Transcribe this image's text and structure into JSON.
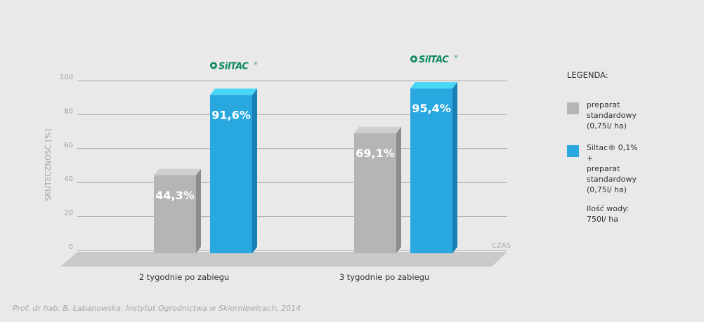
{
  "chart_data": {
    "type": "bar",
    "title": "",
    "ylabel": "SKUTECZNOŚĆ [%]",
    "xlabel": "CZAS",
    "ylim": [
      0,
      100
    ],
    "yticks": [
      0,
      20,
      40,
      60,
      80,
      100
    ],
    "categories": [
      "2 tygodnie po zabiegu",
      "3 tygodnie po zabiegu"
    ],
    "series": [
      {
        "name": "preparat standardowy (0,75l/ ha)",
        "values": [
          44.3,
          69.1
        ],
        "labels": [
          "44,3%",
          "69,1%"
        ],
        "color": "#b5b5b5"
      },
      {
        "name": "Siltac® 0,1% + preparat standardowy (0,75l/ ha)",
        "values": [
          91.6,
          95.4
        ],
        "labels": [
          "91,6%",
          "95,4%"
        ],
        "color": "#29a8e0"
      }
    ],
    "grid": true,
    "legend_position": "right"
  },
  "logo": {
    "text": "SilTAC",
    "mark": "®",
    "color": "#0e8a5f"
  },
  "legend": {
    "title": "LEGENDA:",
    "items": [
      {
        "text": "preparat\nstandardowy\n(0,75l/ ha)",
        "color": "#b5b5b5"
      },
      {
        "text": "Siltac® 0,1%\n+\npreparat\nstandardowy\n(0,75l/ ha)",
        "color": "#29a8e0"
      }
    ],
    "note": "Ilość wody:\n750l/ ha"
  },
  "source": "Prof. dr hab. B. Łabanowska, Instytut Ogrodnictwa w Skierniewicach, 2014"
}
